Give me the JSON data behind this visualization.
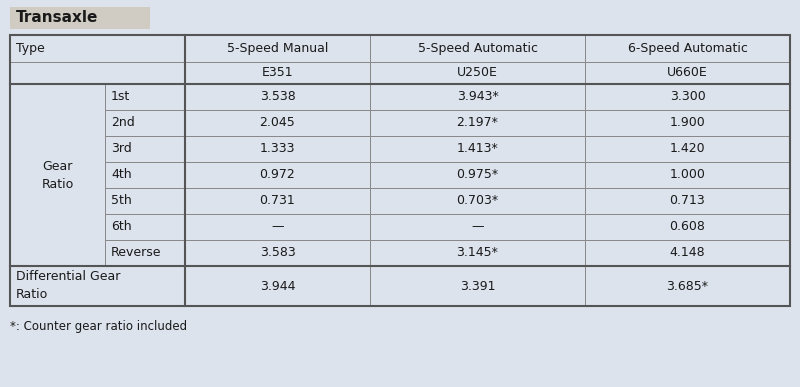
{
  "title": "Transaxle",
  "title_bg": "#d0ccc4",
  "page_bg": "#dce3ed",
  "cell_bg": "#dce3ed",
  "border_color": "#888888",
  "border_color_thick": "#555555",
  "text_color": "#1a1a1a",
  "footnote": "*: Counter gear ratio included",
  "col_headers_row1": [
    "5-Speed Manual",
    "5-Speed Automatic",
    "6-Speed Automatic"
  ],
  "col_headers_row2": [
    "E351",
    "U250E",
    "U660E"
  ],
  "gear_labels": [
    "1st",
    "2nd",
    "3rd",
    "4th",
    "5th",
    "6th",
    "Reverse"
  ],
  "gear_col1": [
    "3.538",
    "2.045",
    "1.333",
    "0.972",
    "0.731",
    "—",
    "3.583"
  ],
  "gear_col2": [
    "3.943*",
    "2.197*",
    "1.413*",
    "0.975*",
    "0.703*",
    "—",
    "3.145*"
  ],
  "gear_col3": [
    "3.300",
    "1.900",
    "1.420",
    "1.000",
    "0.713",
    "0.608",
    "4.148"
  ],
  "diff_col1": "3.944",
  "diff_col2": "3.391",
  "diff_col3": "3.685*",
  "fig_width": 8.0,
  "fig_height": 3.87,
  "dpi": 100
}
